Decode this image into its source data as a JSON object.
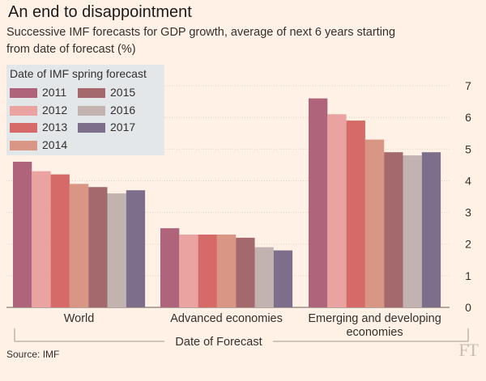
{
  "title": "An end to disappointment",
  "subtitle_line1": "Successive IMF forecasts for GDP growth, average of next 6 years starting",
  "subtitle_line2": "from date of forecast (%)",
  "source": "Source: IMF",
  "logo": "FT",
  "chart_data": {
    "type": "bar",
    "categories": [
      "World",
      "Advanced economies",
      "Emerging and developing economies"
    ],
    "category_lines": [
      [
        "World"
      ],
      [
        "Advanced economies"
      ],
      [
        "Emerging and developing",
        "economies"
      ]
    ],
    "xlabel": "Date of Forecast",
    "legend_title": "Date of IMF spring forecast",
    "legend_placement": "top-left",
    "ylim": [
      0,
      7
    ],
    "yticks": [
      0,
      1,
      2,
      3,
      4,
      5,
      6,
      7
    ],
    "grid": true,
    "series": [
      {
        "name": "2011",
        "color": "#b0647c",
        "values": [
          4.6,
          2.5,
          6.6
        ]
      },
      {
        "name": "2012",
        "color": "#eba3a1",
        "values": [
          4.3,
          2.3,
          6.1
        ]
      },
      {
        "name": "2013",
        "color": "#d66a68",
        "values": [
          4.2,
          2.3,
          5.9
        ]
      },
      {
        "name": "2014",
        "color": "#d99684",
        "values": [
          3.9,
          2.3,
          5.3
        ]
      },
      {
        "name": "2015",
        "color": "#a4696d",
        "values": [
          3.8,
          2.2,
          4.9
        ]
      },
      {
        "name": "2016",
        "color": "#c2b3b1",
        "values": [
          3.6,
          1.9,
          4.8
        ]
      },
      {
        "name": "2017",
        "color": "#7d6f8c",
        "values": [
          3.7,
          1.8,
          4.9
        ]
      }
    ]
  }
}
